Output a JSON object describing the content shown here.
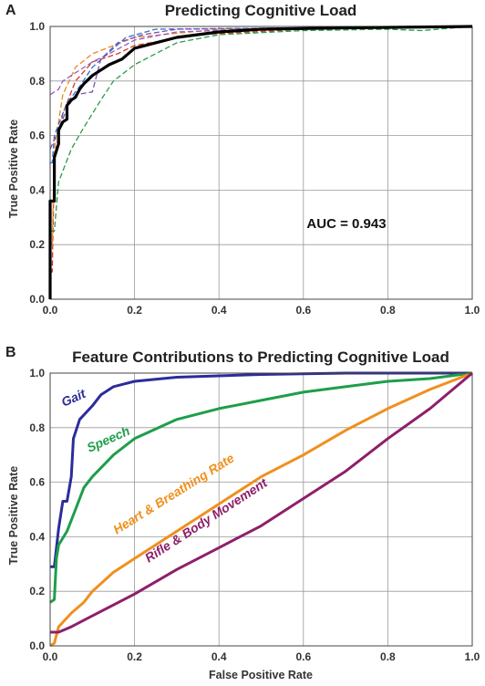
{
  "chart_data": [
    {
      "panel": "A",
      "type": "line",
      "title": "Predicting Cognitive Load",
      "xlabel": "",
      "ylabel": "True Positive Rate",
      "xlim": [
        0,
        1
      ],
      "ylim": [
        0,
        1
      ],
      "xticks": [
        "0.0",
        "0.2",
        "0.4",
        "0.6",
        "0.8",
        "1.0"
      ],
      "yticks": [
        "0.0",
        "0.2",
        "0.4",
        "0.6",
        "0.8",
        "1.0"
      ],
      "grid": true,
      "annotation": "AUC = 0.943",
      "series": [
        {
          "color": "#000000",
          "style": "solid",
          "points": [
            [
              0,
              0
            ],
            [
              0,
              0.36
            ],
            [
              0.01,
              0.36
            ],
            [
              0.01,
              0.52
            ],
            [
              0.02,
              0.57
            ],
            [
              0.02,
              0.62
            ],
            [
              0.03,
              0.65
            ],
            [
              0.04,
              0.66
            ],
            [
              0.04,
              0.71
            ],
            [
              0.05,
              0.73
            ],
            [
              0.06,
              0.74
            ],
            [
              0.07,
              0.77
            ],
            [
              0.08,
              0.79
            ],
            [
              0.1,
              0.82
            ],
            [
              0.12,
              0.84
            ],
            [
              0.14,
              0.86
            ],
            [
              0.17,
              0.88
            ],
            [
              0.2,
              0.92
            ],
            [
              0.25,
              0.94
            ],
            [
              0.3,
              0.96
            ],
            [
              0.4,
              0.98
            ],
            [
              0.5,
              0.99
            ],
            [
              0.7,
              0.995
            ],
            [
              1,
              1
            ]
          ]
        },
        {
          "color": "#d63a1f",
          "style": "dashed",
          "points": [
            [
              0,
              0.1
            ],
            [
              0.005,
              0.1
            ],
            [
              0.01,
              0.52
            ],
            [
              0.03,
              0.68
            ],
            [
              0.06,
              0.8
            ],
            [
              0.1,
              0.87
            ],
            [
              0.16,
              0.9
            ],
            [
              0.2,
              0.93
            ],
            [
              0.35,
              0.97
            ],
            [
              0.6,
              0.99
            ],
            [
              1,
              1
            ]
          ]
        },
        {
          "color": "#ea8a1f",
          "style": "dashed",
          "points": [
            [
              0,
              0.2
            ],
            [
              0.005,
              0.2
            ],
            [
              0.01,
              0.55
            ],
            [
              0.03,
              0.75
            ],
            [
              0.06,
              0.85
            ],
            [
              0.1,
              0.9
            ],
            [
              0.2,
              0.96
            ],
            [
              0.4,
              0.99
            ],
            [
              1,
              1
            ]
          ]
        },
        {
          "color": "#9a59c4",
          "style": "dashed",
          "points": [
            [
              0,
              0.75
            ],
            [
              0.02,
              0.77
            ],
            [
              0.03,
              0.8
            ],
            [
              0.05,
              0.82
            ],
            [
              0.1,
              0.87
            ],
            [
              0.14,
              0.9
            ],
            [
              0.2,
              0.95
            ],
            [
              0.3,
              0.98
            ],
            [
              0.5,
              0.99
            ],
            [
              1,
              1
            ]
          ]
        },
        {
          "color": "#2f6fd6",
          "style": "dashed",
          "points": [
            [
              0,
              0.5
            ],
            [
              0.005,
              0.5
            ],
            [
              0.01,
              0.6
            ],
            [
              0.04,
              0.72
            ],
            [
              0.07,
              0.78
            ],
            [
              0.1,
              0.85
            ],
            [
              0.15,
              0.92
            ],
            [
              0.18,
              0.96
            ],
            [
              0.25,
              0.99
            ],
            [
              1,
              1
            ]
          ]
        },
        {
          "color": "#7a4fb0",
          "style": "dashed",
          "points": [
            [
              0,
              0.55
            ],
            [
              0.02,
              0.62
            ],
            [
              0.04,
              0.7
            ],
            [
              0.06,
              0.75
            ],
            [
              0.1,
              0.76
            ],
            [
              0.12,
              0.88
            ],
            [
              0.16,
              0.94
            ],
            [
              0.22,
              0.97
            ],
            [
              0.3,
              0.99
            ],
            [
              1,
              1
            ]
          ]
        },
        {
          "color": "#2a9a4a",
          "style": "dashed",
          "points": [
            [
              0,
              0.25
            ],
            [
              0.01,
              0.25
            ],
            [
              0.02,
              0.43
            ],
            [
              0.05,
              0.55
            ],
            [
              0.08,
              0.63
            ],
            [
              0.12,
              0.73
            ],
            [
              0.15,
              0.8
            ],
            [
              0.2,
              0.86
            ],
            [
              0.3,
              0.94
            ],
            [
              0.4,
              0.97
            ],
            [
              0.6,
              0.985
            ],
            [
              0.8,
              0.99
            ],
            [
              0.88,
              0.985
            ],
            [
              1,
              1
            ]
          ]
        }
      ]
    },
    {
      "panel": "B",
      "type": "line",
      "title": "Feature Contributions to Predicting Cognitive Load",
      "xlabel": "False Positive Rate",
      "ylabel": "True Positive Rate",
      "xlim": [
        0,
        1
      ],
      "ylim": [
        0,
        1
      ],
      "xticks": [
        "0.0",
        "0.2",
        "0.4",
        "0.6",
        "0.8",
        "1.0"
      ],
      "yticks": [
        "0.0",
        "0.2",
        "0.4",
        "0.6",
        "0.8",
        "1.0"
      ],
      "grid": true,
      "series": [
        {
          "name": "Gait",
          "color": "#2c2c9c",
          "points": [
            [
              0,
              0.29
            ],
            [
              0.01,
              0.29
            ],
            [
              0.02,
              0.43
            ],
            [
              0.03,
              0.53
            ],
            [
              0.04,
              0.53
            ],
            [
              0.05,
              0.62
            ],
            [
              0.055,
              0.76
            ],
            [
              0.07,
              0.83
            ],
            [
              0.1,
              0.88
            ],
            [
              0.12,
              0.92
            ],
            [
              0.15,
              0.95
            ],
            [
              0.2,
              0.97
            ],
            [
              0.3,
              0.985
            ],
            [
              0.5,
              0.995
            ],
            [
              0.7,
              1
            ],
            [
              1,
              1
            ]
          ]
        },
        {
          "name": "Speech",
          "color": "#1e9e4a",
          "points": [
            [
              0,
              0.16
            ],
            [
              0.01,
              0.17
            ],
            [
              0.015,
              0.32
            ],
            [
              0.02,
              0.37
            ],
            [
              0.04,
              0.42
            ],
            [
              0.06,
              0.5
            ],
            [
              0.08,
              0.58
            ],
            [
              0.1,
              0.62
            ],
            [
              0.15,
              0.7
            ],
            [
              0.2,
              0.76
            ],
            [
              0.3,
              0.83
            ],
            [
              0.4,
              0.87
            ],
            [
              0.5,
              0.9
            ],
            [
              0.6,
              0.93
            ],
            [
              0.7,
              0.95
            ],
            [
              0.8,
              0.97
            ],
            [
              0.9,
              0.98
            ],
            [
              1,
              1
            ]
          ]
        },
        {
          "name": "Heart & Breathing Rate",
          "color": "#f0901e",
          "points": [
            [
              0,
              0
            ],
            [
              0.01,
              0.01
            ],
            [
              0.02,
              0.07
            ],
            [
              0.05,
              0.12
            ],
            [
              0.08,
              0.16
            ],
            [
              0.1,
              0.2
            ],
            [
              0.15,
              0.27
            ],
            [
              0.2,
              0.32
            ],
            [
              0.3,
              0.42
            ],
            [
              0.4,
              0.52
            ],
            [
              0.5,
              0.62
            ],
            [
              0.6,
              0.7
            ],
            [
              0.7,
              0.79
            ],
            [
              0.8,
              0.87
            ],
            [
              0.9,
              0.94
            ],
            [
              1,
              1
            ]
          ]
        },
        {
          "name": "Rifle & Body Movement",
          "color": "#8e1f6a",
          "points": [
            [
              0,
              0.05
            ],
            [
              0.02,
              0.05
            ],
            [
              0.05,
              0.07
            ],
            [
              0.1,
              0.11
            ],
            [
              0.2,
              0.19
            ],
            [
              0.3,
              0.28
            ],
            [
              0.4,
              0.36
            ],
            [
              0.5,
              0.44
            ],
            [
              0.6,
              0.54
            ],
            [
              0.7,
              0.64
            ],
            [
              0.8,
              0.76
            ],
            [
              0.9,
              0.87
            ],
            [
              1,
              1
            ]
          ]
        }
      ]
    }
  ]
}
